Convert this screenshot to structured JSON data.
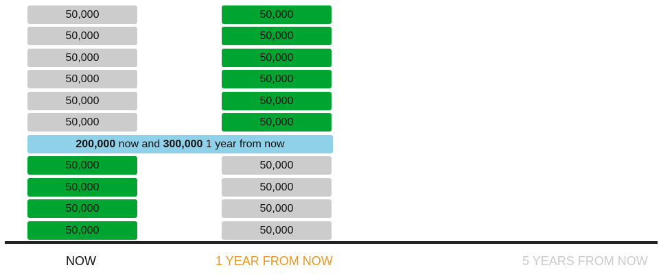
{
  "columns": {
    "now": {
      "label": "NOW",
      "upper_cells": [
        "50,000",
        "50,000",
        "50,000",
        "50,000",
        "50,000",
        "50,000"
      ],
      "lower_cells": [
        "50,000",
        "50,000",
        "50,000",
        "50,000"
      ]
    },
    "one_year": {
      "label": "1 YEAR FROM NOW",
      "upper_cells": [
        "50,000",
        "50,000",
        "50,000",
        "50,000",
        "50,000",
        "50,000"
      ],
      "lower_cells": [
        "50,000",
        "50,000",
        "50,000",
        "50,000"
      ]
    },
    "five_years": {
      "label": "5 YEARS FROM NOW"
    }
  },
  "summary": {
    "amount_now": "200,000",
    "text_now": " now and ",
    "amount_year": "300,000",
    "text_year": " 1 year from now"
  },
  "colors": {
    "gray_block": "#cccccc",
    "green_block": "#00a531",
    "summary_bar": "#8fd1e8",
    "active_label": "#f0961e",
    "inactive_label": "#cccccc"
  }
}
